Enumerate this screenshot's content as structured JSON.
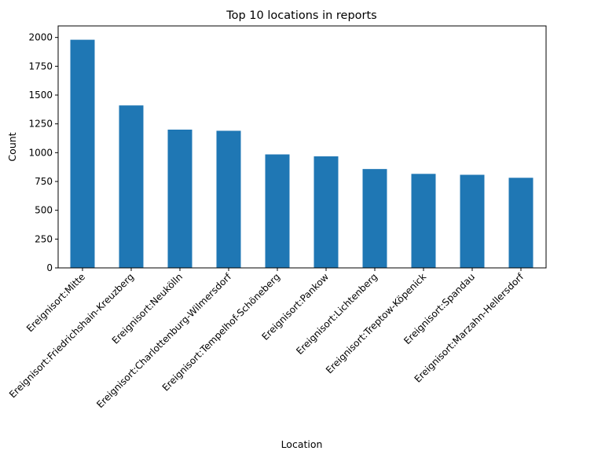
{
  "chart_data": {
    "type": "bar",
    "title": "Top 10 locations in reports",
    "xlabel": "Location",
    "ylabel": "Count",
    "categories": [
      "Ereignisort:Mitte",
      "Ereignisort:Friedrichshain-Kreuzberg",
      "Ereignisort:Neukölln",
      "Ereignisort:Charlottenburg-Wilmersdorf",
      "Ereignisort:Tempelhof-Schöneberg",
      "Ereignisort:Pankow",
      "Ereignisort:Lichtenberg",
      "Ereignisort:Treptow-Köpenick",
      "Ereignisort:Spandau",
      "Ereignisort:Marzahn-Hellersdorf"
    ],
    "values": [
      1980,
      1410,
      1200,
      1190,
      985,
      968,
      858,
      816,
      808,
      782
    ],
    "ylim": [
      0,
      2100
    ],
    "yticks": [
      0,
      250,
      500,
      750,
      1000,
      1250,
      1500,
      1750,
      2000
    ],
    "ytick_labels": [
      "0",
      "250",
      "500",
      "750",
      "1000",
      "1250",
      "1500",
      "1750",
      "2000"
    ],
    "grid": false,
    "legend": "none",
    "bar_color": "#1f77b4"
  }
}
